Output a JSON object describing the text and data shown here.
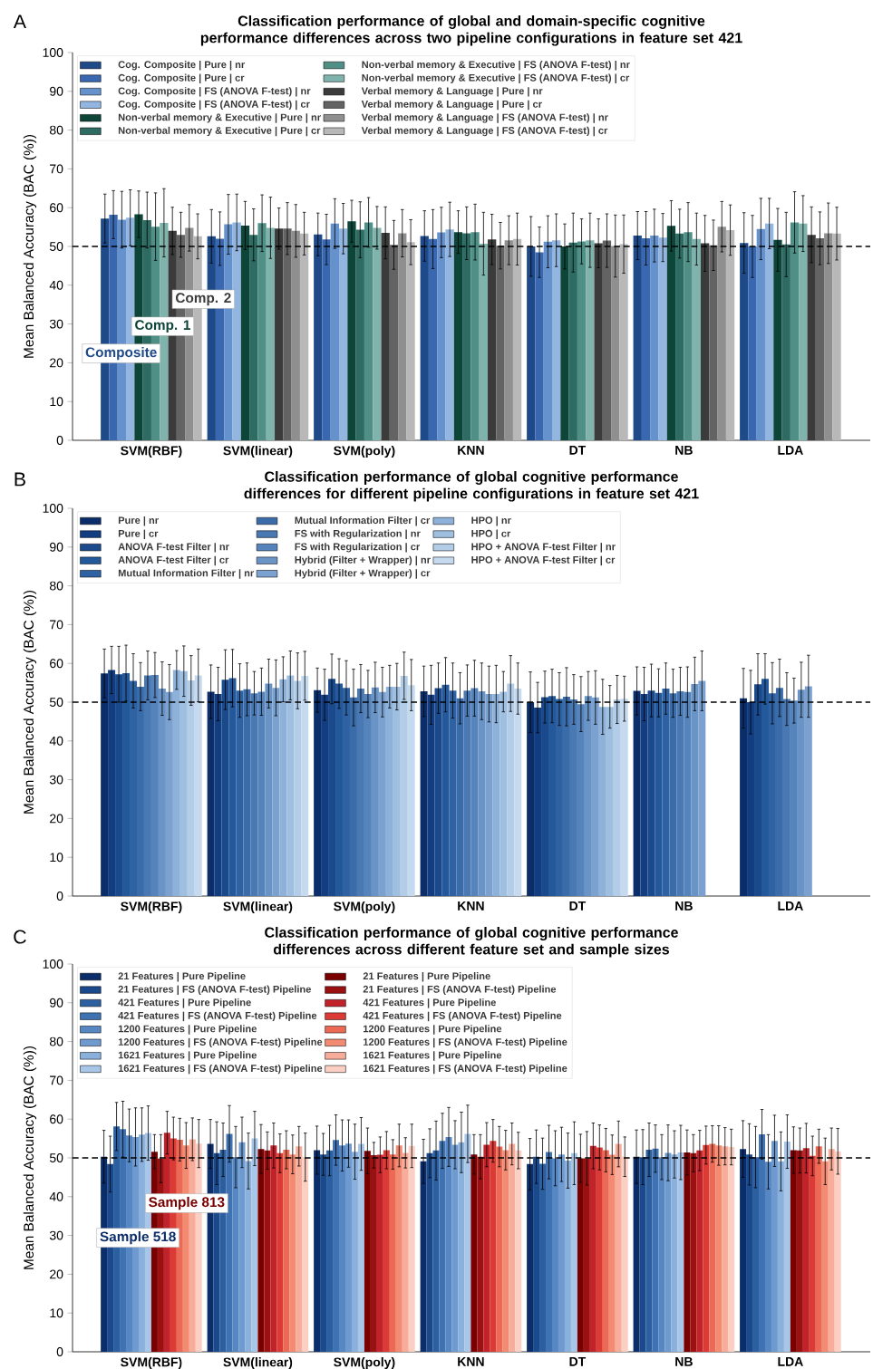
{
  "chart_data": [
    {
      "type": "bar",
      "title": "Classification performance of global and domain-specific cognitive performance differences across two pipeline configurations in feature set 421",
      "ylabel": "Mean Balanced Accuracy (BAC (%))",
      "categories": [
        "SVM(RBF)",
        "SVM(linear)",
        "SVM(poly)",
        "KNN",
        "DT",
        "NB",
        "LDA"
      ],
      "ylim": [
        0,
        100
      ],
      "yticks": [
        0,
        10,
        20,
        30,
        40,
        50,
        60,
        70,
        80,
        90,
        100
      ],
      "legend": "top left",
      "ref_lines": [
        {
          "axis": "y",
          "value": 50,
          "line_style": "dashed"
        }
      ],
      "annotations": [
        "A",
        "Composite",
        "Comp. 1",
        "Comp. 2"
      ],
      "series": [
        {
          "name": "Cog. Composite | Pure | nr",
          "color": "#1f4a8a",
          "values": [
            57.2,
            52.6,
            53.1,
            52.7,
            50.0,
            52.8,
            50.9
          ],
          "errors": [
            6.3,
            6.9,
            5.5,
            6.5,
            7.7,
            6.2,
            7.8
          ]
        },
        {
          "name": "Cog. Composite | Pure | cr",
          "color": "#3a68b0",
          "values": [
            58.2,
            52.0,
            51.8,
            51.9,
            48.5,
            52.1,
            50.0
          ],
          "errors": [
            6.2,
            6.9,
            6.5,
            7.6,
            6.5,
            6.9,
            8.0
          ]
        },
        {
          "name": "Cog. Composite | FS (ANOVA F-test) | nr",
          "color": "#6592cc",
          "values": [
            56.9,
            55.7,
            55.9,
            53.6,
            51.2,
            52.8,
            54.5
          ],
          "errors": [
            7.3,
            7.7,
            6.4,
            6.5,
            6.7,
            6.8,
            7.9
          ]
        },
        {
          "name": "Cog. Composite | FS (ANOVA F-test) | cr",
          "color": "#93b6e0",
          "values": [
            57.4,
            56.2,
            54.6,
            54.4,
            51.6,
            52.3,
            55.9
          ],
          "errors": [
            7.2,
            7.3,
            6.5,
            7.0,
            6.8,
            6.2,
            6.5
          ]
        },
        {
          "name": "Non-verbal memory & Executive | Pure | nr",
          "color": "#0d4538",
          "values": [
            58.3,
            55.4,
            56.5,
            53.7,
            50.0,
            55.3,
            51.7
          ],
          "errors": [
            6.0,
            6.2,
            5.4,
            5.5,
            5.8,
            6.5,
            8.1
          ]
        },
        {
          "name": "Non-verbal memory & Executive | Pure | cr",
          "color": "#2e6b63",
          "values": [
            56.8,
            53.0,
            54.3,
            53.4,
            51.0,
            53.3,
            50.5
          ],
          "errors": [
            7.2,
            6.7,
            7.2,
            6.8,
            7.6,
            6.3,
            8.3
          ]
        },
        {
          "name": "Non-verbal memory & Executive | FS (ANOVA F-test) | nr",
          "color": "#4f8f86",
          "values": [
            55.1,
            56.0,
            56.2,
            53.7,
            51.3,
            53.7,
            56.2
          ],
          "errors": [
            8.7,
            7.3,
            6.4,
            7.2,
            5.8,
            7.6,
            7.9
          ]
        },
        {
          "name": "Non-verbal memory & Executive | FS (ANOVA F-test) | cr",
          "color": "#80b3ac",
          "values": [
            56.1,
            54.8,
            54.8,
            50.7,
            51.6,
            51.9,
            55.9
          ],
          "errors": [
            8.8,
            7.9,
            5.5,
            8.1,
            7.0,
            6.7,
            7.2
          ]
        },
        {
          "name": "Verbal memory & Language | Pure | nr",
          "color": "#3b3b3b",
          "values": [
            54.0,
            54.6,
            53.5,
            51.8,
            50.8,
            50.8,
            53.0
          ],
          "errors": [
            6.1,
            5.3,
            6.7,
            6.5,
            6.3,
            7.2,
            7.2
          ]
        },
        {
          "name": "Verbal memory & Language | Pure | cr",
          "color": "#636363",
          "values": [
            53.0,
            54.6,
            50.4,
            50.2,
            51.5,
            50.3,
            52.1
          ],
          "errors": [
            5.8,
            6.7,
            6.3,
            6.0,
            6.9,
            6.5,
            6.8
          ]
        },
        {
          "name": "Verbal memory & Language | FS (ANOVA F-test) | nr",
          "color": "#8f8f8f",
          "values": [
            54.8,
            54.0,
            53.4,
            51.6,
            50.1,
            55.1,
            53.4
          ],
          "errors": [
            6.0,
            6.8,
            6.1,
            6.3,
            8.0,
            6.5,
            7.8
          ]
        },
        {
          "name": "Verbal memory & Language | FS (ANOVA F-test) | cr",
          "color": "#b8b8b8",
          "values": [
            52.6,
            53.3,
            51.1,
            51.9,
            50.6,
            54.2,
            53.3
          ],
          "errors": [
            5.8,
            5.5,
            5.8,
            6.7,
            7.5,
            6.5,
            6.8
          ]
        }
      ]
    },
    {
      "type": "bar",
      "title": "Classification performance of global cognitive performance differences for different pipeline configurations in feature set 421",
      "ylabel": "Mean Balanced Accuracy (BAC (%))",
      "categories": [
        "SVM(RBF)",
        "SVM(linear)",
        "SVM(poly)",
        "KNN",
        "DT",
        "NB",
        "LDA"
      ],
      "ylim": [
        0,
        100
      ],
      "yticks": [
        0,
        10,
        20,
        30,
        40,
        50,
        60,
        70,
        80,
        90,
        100
      ],
      "legend": "top left",
      "ref_lines": [
        {
          "axis": "y",
          "value": 50,
          "line_style": "dashed"
        }
      ],
      "annotations": [
        "B"
      ],
      "series": [
        {
          "name": "Pure | nr",
          "color": "#0b2e6b",
          "values": [
            57.4,
            52.7,
            53.1,
            52.8,
            50.0,
            52.9,
            51.0
          ],
          "errors": [
            6.3,
            6.9,
            5.7,
            6.5,
            7.8,
            6.2,
            7.7
          ]
        },
        {
          "name": "Pure | cr",
          "color": "#123d80",
          "values": [
            58.3,
            52.1,
            51.9,
            51.9,
            48.6,
            52.1,
            50.0
          ],
          "errors": [
            6.1,
            6.9,
            6.6,
            7.6,
            6.5,
            6.9,
            8.2
          ]
        },
        {
          "name": "ANOVA F-test Filter | nr",
          "color": "#1a4a8c",
          "values": [
            57.2,
            55.8,
            56.0,
            53.6,
            51.3,
            53.0,
            54.6
          ],
          "errors": [
            7.2,
            7.7,
            6.4,
            6.5,
            6.7,
            6.8,
            7.9
          ]
        },
        {
          "name": "ANOVA F-test Filter | cr",
          "color": "#23589a",
          "values": [
            57.5,
            56.2,
            54.8,
            54.5,
            51.6,
            52.4,
            56.0
          ],
          "errors": [
            7.2,
            7.4,
            6.4,
            7.0,
            6.9,
            6.2,
            6.5
          ]
        },
        {
          "name": "Mutual Information Filter | nr",
          "color": "#2e62a3",
          "values": [
            55.5,
            53.0,
            53.7,
            53.0,
            50.8,
            53.5,
            52.3
          ],
          "errors": [
            7.0,
            6.9,
            7.0,
            7.1,
            6.8,
            6.6,
            7.9
          ]
        },
        {
          "name": "Mutual Information Filter | cr",
          "color": "#3a6caa",
          "values": [
            54.0,
            53.3,
            51.2,
            51.0,
            51.4,
            52.3,
            53.7
          ],
          "errors": [
            6.2,
            6.8,
            7.3,
            6.6,
            7.5,
            6.2,
            7.4
          ]
        },
        {
          "name": "FS with Regularization | nr",
          "color": "#4a78b2",
          "values": [
            56.9,
            52.3,
            53.5,
            53.0,
            50.7,
            52.8,
            50.8
          ],
          "errors": [
            6.3,
            5.6,
            6.2,
            6.6,
            6.4,
            6.2,
            6.8
          ]
        },
        {
          "name": "FS with Regularization | cr",
          "color": "#5583bb",
          "values": [
            57.0,
            52.7,
            52.1,
            53.6,
            49.5,
            52.6,
            50.4
          ],
          "errors": [
            5.8,
            6.1,
            6.1,
            7.2,
            7.1,
            6.5,
            5.8
          ]
        },
        {
          "name": "Hybrid (Filter + Wrapper) | nr",
          "color": "#6a93c6",
          "values": [
            53.5,
            54.8,
            53.8,
            52.8,
            51.6,
            54.7,
            53.2
          ],
          "errors": [
            6.9,
            6.3,
            6.5,
            7.3,
            6.3,
            6.9,
            7.1
          ]
        },
        {
          "name": "Hybrid (Filter + Wrapper) | cr",
          "color": "#7aa1cf",
          "values": [
            52.6,
            53.7,
            52.6,
            52.1,
            51.2,
            55.5,
            54.1
          ],
          "errors": [
            7.1,
            7.2,
            6.4,
            7.2,
            6.9,
            7.7,
            8.0
          ]
        },
        {
          "name": "HPO | nr",
          "color": "#8db1d9",
          "values": [
            58.3,
            55.9,
            54.0,
            52.1,
            48.8,
            null,
            null
          ],
          "errors": [
            5.0,
            5.8,
            5.5,
            7.4,
            7.1,
            null,
            null
          ]
        },
        {
          "name": "HPO | cr",
          "color": "#9fbfe0",
          "values": [
            58.0,
            56.9,
            54.0,
            52.7,
            48.8,
            null,
            null
          ],
          "errors": [
            6.5,
            6.3,
            6.0,
            5.2,
            5.5,
            null,
            null
          ]
        },
        {
          "name": "HPO + ANOVA F-test Filter | nr",
          "color": "#b3cde8",
          "values": [
            55.6,
            55.5,
            56.8,
            54.8,
            50.7,
            null,
            null
          ],
          "errors": [
            6.4,
            7.2,
            6.1,
            7.2,
            6.2,
            null,
            null
          ]
        },
        {
          "name": "HPO + ANOVA F-test Filter | cr",
          "color": "#c6daef",
          "values": [
            56.9,
            56.8,
            54.4,
            53.5,
            50.9,
            null,
            null
          ],
          "errors": [
            6.8,
            6.3,
            6.6,
            6.6,
            5.8,
            null,
            null
          ]
        }
      ]
    },
    {
      "type": "bar",
      "title": "Classification performance of global cognitive performance differences across different feature set and sample sizes",
      "ylabel": "Mean Balanced Accuracy (BAC (%))",
      "categories": [
        "SVM(RBF)",
        "SVM(linear)",
        "SVM(poly)",
        "KNN",
        "DT",
        "NB",
        "LDA"
      ],
      "ylim": [
        0,
        100
      ],
      "yticks": [
        0,
        10,
        20,
        30,
        40,
        50,
        60,
        70,
        80,
        90,
        100
      ],
      "legend": "top left",
      "ref_lines": [
        {
          "axis": "y",
          "value": 50,
          "line_style": "dashed"
        }
      ],
      "annotations": [
        "C",
        "Sample 813",
        "Sample 518"
      ],
      "series": [
        {
          "name": "21 Features | Pure Pipeline",
          "color": "#0b2e6b",
          "values": [
            50.3,
            53.6,
            52.0,
            49.1,
            48.4,
            50.3,
            52.3
          ],
          "errors": [
            6.8,
            6.3,
            6.2,
            5.7,
            6.6,
            6.9,
            7.3
          ]
        },
        {
          "name": "21 Features | FS (ANOVA F-test) Pipeline",
          "color": "#1b4a8c",
          "values": [
            48.4,
            51.2,
            50.9,
            51.2,
            50.3,
            50.2,
            50.9
          ],
          "errors": [
            7.2,
            8.1,
            5.4,
            6.3,
            6.9,
            7.1,
            7.9
          ]
        },
        {
          "name": "421 Features | Pure Pipeline",
          "color": "#2c5fa0",
          "values": [
            58.1,
            52.1,
            51.9,
            51.9,
            48.5,
            52.1,
            50.2
          ],
          "errors": [
            6.2,
            6.9,
            6.5,
            7.6,
            6.6,
            6.9,
            7.9
          ]
        },
        {
          "name": "421 Features | FS (ANOVA F-test) Pipeline",
          "color": "#3f72b2",
          "values": [
            57.4,
            56.2,
            54.6,
            54.4,
            51.5,
            52.4,
            56.1
          ],
          "errors": [
            7.2,
            7.3,
            6.5,
            7.1,
            6.9,
            6.1,
            6.4
          ]
        },
        {
          "name": "1200 Features | Pure Pipeline",
          "color": "#5687c2",
          "values": [
            55.8,
            50.2,
            53.2,
            55.4,
            49.9,
            50.2,
            49.0
          ],
          "errors": [
            6.8,
            7.9,
            6.6,
            7.6,
            7.1,
            5.8,
            7.0
          ]
        },
        {
          "name": "1200 Features | FS (ANOVA F-test) Pipeline",
          "color": "#6f9ad0",
          "values": [
            55.4,
            54.0,
            53.7,
            53.4,
            50.9,
            51.3,
            54.4
          ],
          "errors": [
            7.5,
            6.5,
            6.1,
            6.2,
            7.0,
            7.2,
            6.6
          ]
        },
        {
          "name": "1621 Features | Pure Pipeline",
          "color": "#8ab0dc",
          "values": [
            56.0,
            49.2,
            51.6,
            54.0,
            49.3,
            50.9,
            49.1
          ],
          "errors": [
            6.9,
            7.2,
            7.1,
            7.8,
            7.1,
            6.1,
            7.6
          ]
        },
        {
          "name": "1621 Features | FS (ANOVA F-test) Pipeline",
          "color": "#a8c6e8",
          "values": [
            56.4,
            55.0,
            53.6,
            56.2,
            51.2,
            51.4,
            54.2
          ],
          "errors": [
            7.0,
            7.0,
            6.8,
            7.4,
            8.1,
            7.0,
            6.9
          ]
        },
        {
          "name": "21 Features | Pure Pipeline",
          "color": "#7a0000",
          "values": [
            51.6,
            52.3,
            51.8,
            50.9,
            49.9,
            51.4,
            52.0
          ],
          "errors": [
            4.4,
            6.3,
            5.9,
            5.1,
            6.2,
            5.8,
            6.0
          ]
        },
        {
          "name": "21 Features | FS (ANOVA F-test) Pipeline",
          "color": "#9b1010",
          "values": [
            49.8,
            51.9,
            50.7,
            50.3,
            49.9,
            51.2,
            51.9
          ],
          "errors": [
            6.2,
            4.8,
            3.3,
            5.7,
            6.9,
            4.8,
            5.8
          ]
        },
        {
          "name": "421 Features | Pure Pipeline",
          "color": "#c2222a",
          "values": [
            56.5,
            53.2,
            50.8,
            53.4,
            53.1,
            51.9,
            52.5
          ],
          "errors": [
            5.5,
            5.8,
            4.6,
            5.7,
            5.9,
            5.2,
            6.4
          ]
        },
        {
          "name": "421 Features | FS (ANOVA F-test) Pipeline",
          "color": "#dc3b35",
          "values": [
            55.0,
            51.2,
            52.0,
            54.4,
            52.7,
            53.3,
            50.5
          ],
          "errors": [
            5.5,
            5.0,
            4.8,
            5.5,
            5.8,
            4.9,
            5.1
          ]
        },
        {
          "name": "1200 Features | Pure Pipeline",
          "color": "#ec6a55",
          "values": [
            54.7,
            52.1,
            50.9,
            52.9,
            52.0,
            53.6,
            53.0
          ],
          "errors": [
            5.5,
            4.9,
            3.8,
            5.2,
            5.6,
            4.7,
            4.4
          ]
        },
        {
          "name": "1200 Features | FS (ANOVA F-test) Pipeline",
          "color": "#f38b73",
          "values": [
            53.2,
            50.9,
            53.2,
            52.0,
            50.8,
            53.2,
            49.1
          ],
          "errors": [
            5.9,
            5.0,
            5.5,
            5.1,
            5.1,
            5.1,
            6.0
          ]
        },
        {
          "name": "1621 Features | Pure Pipeline",
          "color": "#f8ad9a",
          "values": [
            54.8,
            53.0,
            51.3,
            53.6,
            53.6,
            53.0,
            52.3
          ],
          "errors": [
            5.5,
            5.1,
            3.9,
            5.4,
            5.9,
            4.8,
            5.4
          ]
        },
        {
          "name": "1621 Features | FS (ANOVA F-test) Pipeline",
          "color": "#fbcfc3",
          "values": [
            53.7,
            50.2,
            53.1,
            51.9,
            50.3,
            52.8,
            51.7
          ],
          "errors": [
            6.2,
            6.2,
            5.6,
            4.7,
            5.1,
            4.6,
            5.9
          ]
        }
      ]
    }
  ]
}
